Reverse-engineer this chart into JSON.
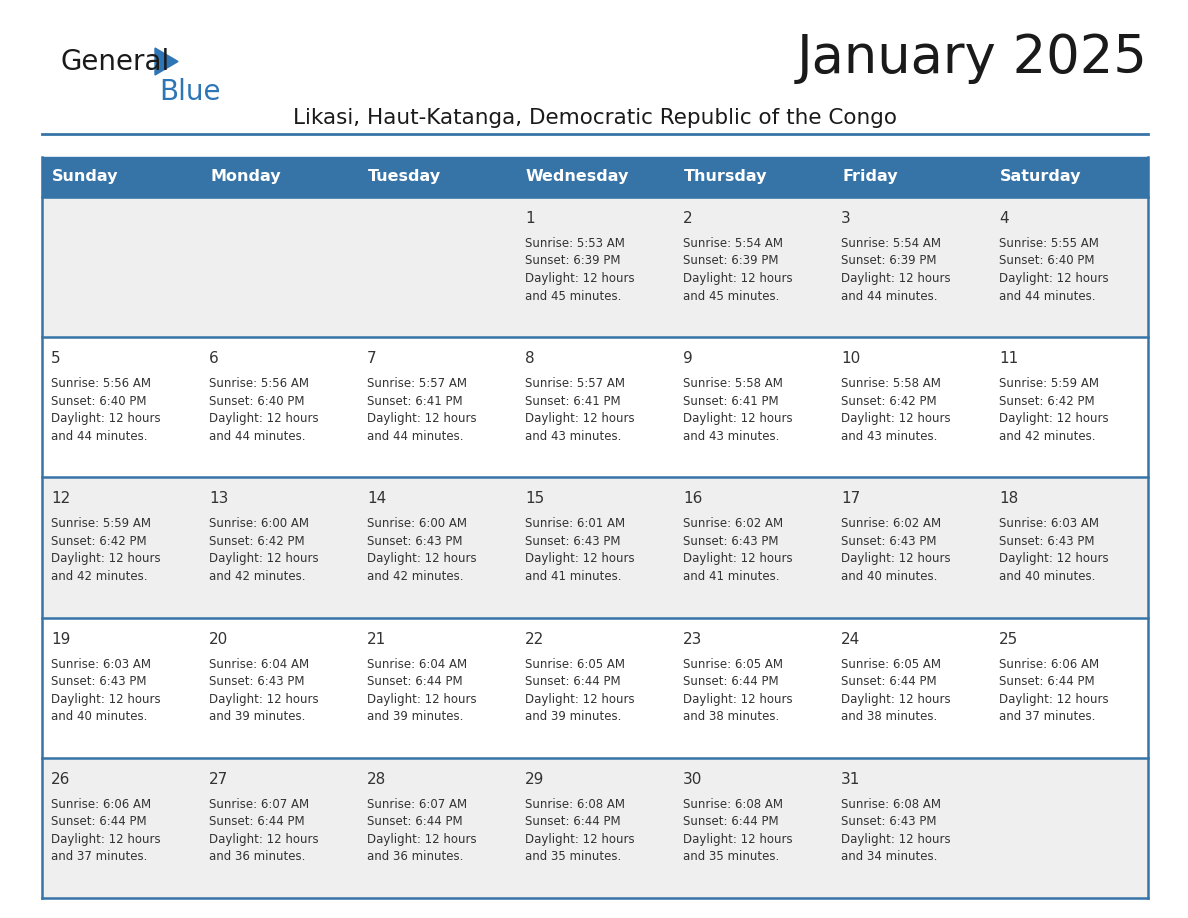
{
  "title": "January 2025",
  "subtitle": "Likasi, Haut-Katanga, Democratic Republic of the Congo",
  "days_of_week": [
    "Sunday",
    "Monday",
    "Tuesday",
    "Wednesday",
    "Thursday",
    "Friday",
    "Saturday"
  ],
  "header_bg": "#3674A8",
  "header_text_color": "#FFFFFF",
  "row_bg_light": "#EFEFEF",
  "row_bg_white": "#FFFFFF",
  "cell_text_color": "#333333",
  "day_number_color": "#333333",
  "border_color": "#3674A8",
  "logo_general_color": "#1a1a1a",
  "logo_blue_color": "#2E75B6",
  "calendar_data": [
    [
      null,
      null,
      null,
      {
        "day": 1,
        "sunrise": "5:53 AM",
        "sunset": "6:39 PM",
        "daylight": "12 hours and 45 minutes"
      },
      {
        "day": 2,
        "sunrise": "5:54 AM",
        "sunset": "6:39 PM",
        "daylight": "12 hours and 45 minutes"
      },
      {
        "day": 3,
        "sunrise": "5:54 AM",
        "sunset": "6:39 PM",
        "daylight": "12 hours and 44 minutes"
      },
      {
        "day": 4,
        "sunrise": "5:55 AM",
        "sunset": "6:40 PM",
        "daylight": "12 hours and 44 minutes"
      }
    ],
    [
      {
        "day": 5,
        "sunrise": "5:56 AM",
        "sunset": "6:40 PM",
        "daylight": "12 hours and 44 minutes"
      },
      {
        "day": 6,
        "sunrise": "5:56 AM",
        "sunset": "6:40 PM",
        "daylight": "12 hours and 44 minutes"
      },
      {
        "day": 7,
        "sunrise": "5:57 AM",
        "sunset": "6:41 PM",
        "daylight": "12 hours and 44 minutes"
      },
      {
        "day": 8,
        "sunrise": "5:57 AM",
        "sunset": "6:41 PM",
        "daylight": "12 hours and 43 minutes"
      },
      {
        "day": 9,
        "sunrise": "5:58 AM",
        "sunset": "6:41 PM",
        "daylight": "12 hours and 43 minutes"
      },
      {
        "day": 10,
        "sunrise": "5:58 AM",
        "sunset": "6:42 PM",
        "daylight": "12 hours and 43 minutes"
      },
      {
        "day": 11,
        "sunrise": "5:59 AM",
        "sunset": "6:42 PM",
        "daylight": "12 hours and 42 minutes"
      }
    ],
    [
      {
        "day": 12,
        "sunrise": "5:59 AM",
        "sunset": "6:42 PM",
        "daylight": "12 hours and 42 minutes"
      },
      {
        "day": 13,
        "sunrise": "6:00 AM",
        "sunset": "6:42 PM",
        "daylight": "12 hours and 42 minutes"
      },
      {
        "day": 14,
        "sunrise": "6:00 AM",
        "sunset": "6:43 PM",
        "daylight": "12 hours and 42 minutes"
      },
      {
        "day": 15,
        "sunrise": "6:01 AM",
        "sunset": "6:43 PM",
        "daylight": "12 hours and 41 minutes"
      },
      {
        "day": 16,
        "sunrise": "6:02 AM",
        "sunset": "6:43 PM",
        "daylight": "12 hours and 41 minutes"
      },
      {
        "day": 17,
        "sunrise": "6:02 AM",
        "sunset": "6:43 PM",
        "daylight": "12 hours and 40 minutes"
      },
      {
        "day": 18,
        "sunrise": "6:03 AM",
        "sunset": "6:43 PM",
        "daylight": "12 hours and 40 minutes"
      }
    ],
    [
      {
        "day": 19,
        "sunrise": "6:03 AM",
        "sunset": "6:43 PM",
        "daylight": "12 hours and 40 minutes"
      },
      {
        "day": 20,
        "sunrise": "6:04 AM",
        "sunset": "6:43 PM",
        "daylight": "12 hours and 39 minutes"
      },
      {
        "day": 21,
        "sunrise": "6:04 AM",
        "sunset": "6:44 PM",
        "daylight": "12 hours and 39 minutes"
      },
      {
        "day": 22,
        "sunrise": "6:05 AM",
        "sunset": "6:44 PM",
        "daylight": "12 hours and 39 minutes"
      },
      {
        "day": 23,
        "sunrise": "6:05 AM",
        "sunset": "6:44 PM",
        "daylight": "12 hours and 38 minutes"
      },
      {
        "day": 24,
        "sunrise": "6:05 AM",
        "sunset": "6:44 PM",
        "daylight": "12 hours and 38 minutes"
      },
      {
        "day": 25,
        "sunrise": "6:06 AM",
        "sunset": "6:44 PM",
        "daylight": "12 hours and 37 minutes"
      }
    ],
    [
      {
        "day": 26,
        "sunrise": "6:06 AM",
        "sunset": "6:44 PM",
        "daylight": "12 hours and 37 minutes"
      },
      {
        "day": 27,
        "sunrise": "6:07 AM",
        "sunset": "6:44 PM",
        "daylight": "12 hours and 36 minutes"
      },
      {
        "day": 28,
        "sunrise": "6:07 AM",
        "sunset": "6:44 PM",
        "daylight": "12 hours and 36 minutes"
      },
      {
        "day": 29,
        "sunrise": "6:08 AM",
        "sunset": "6:44 PM",
        "daylight": "12 hours and 35 minutes"
      },
      {
        "day": 30,
        "sunrise": "6:08 AM",
        "sunset": "6:44 PM",
        "daylight": "12 hours and 35 minutes"
      },
      {
        "day": 31,
        "sunrise": "6:08 AM",
        "sunset": "6:43 PM",
        "daylight": "12 hours and 34 minutes"
      },
      null
    ]
  ]
}
